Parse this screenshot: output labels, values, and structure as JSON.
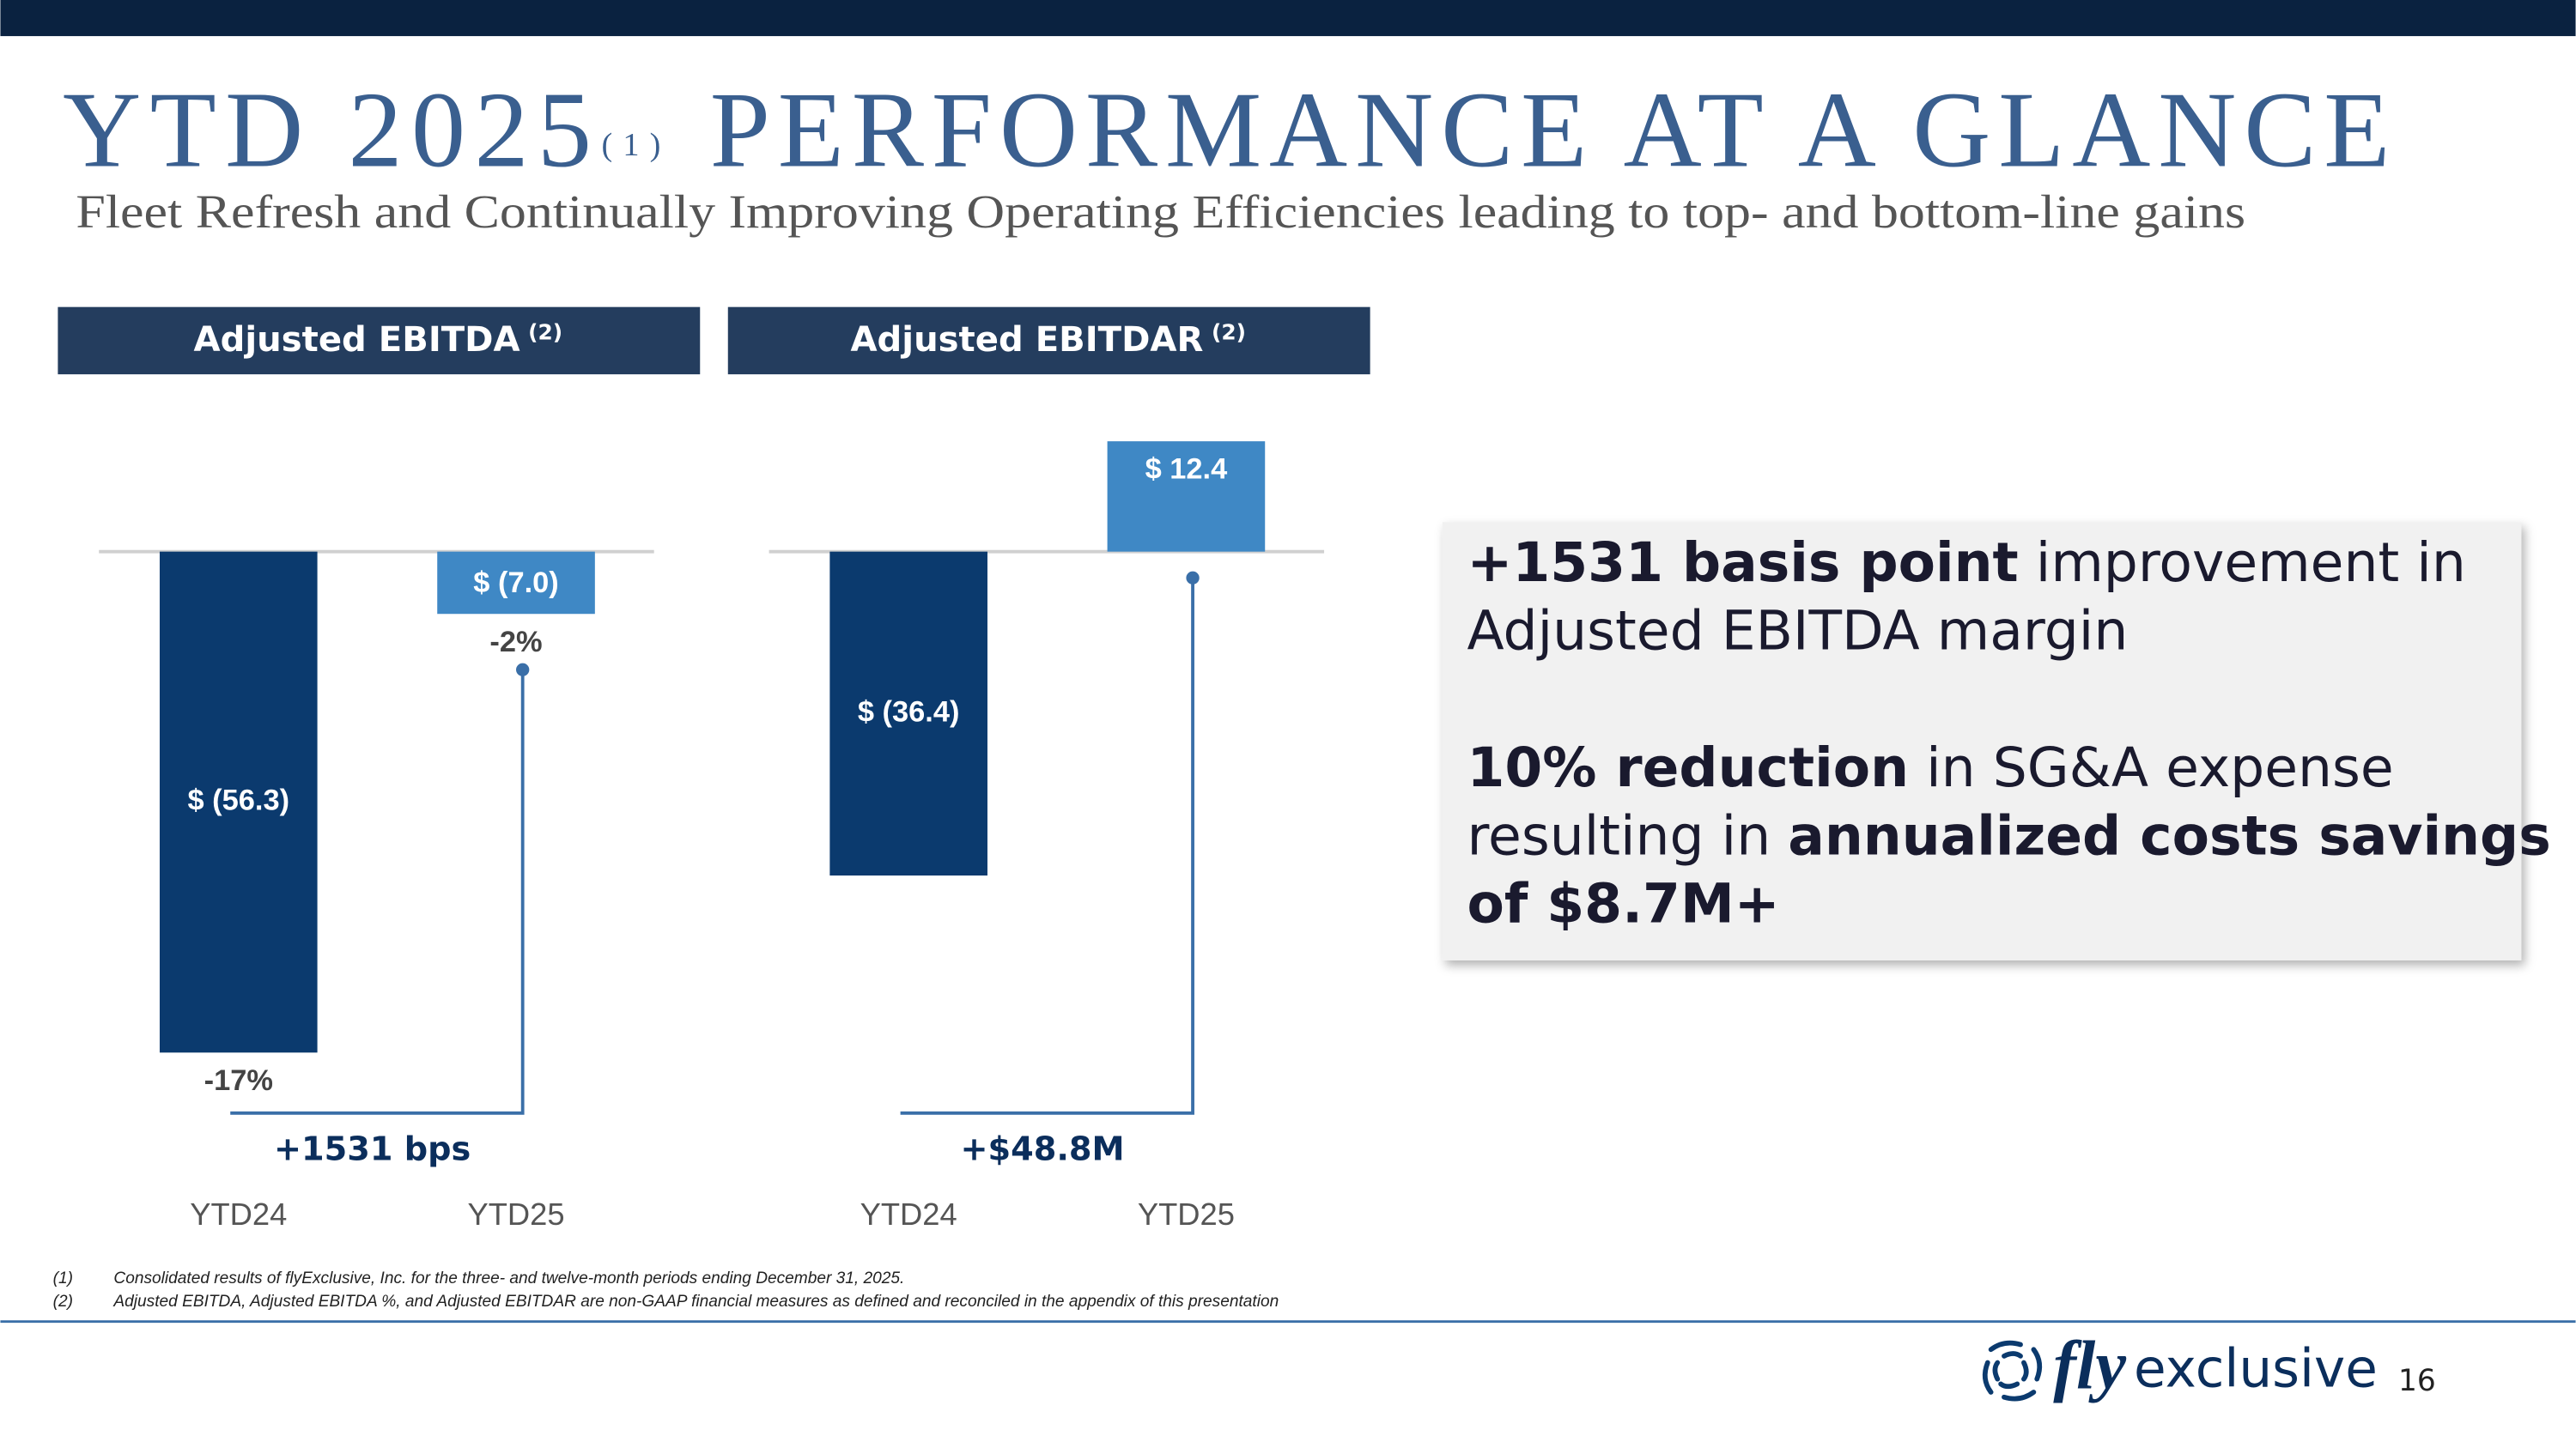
{
  "header": {
    "title_main": "YTD 2025",
    "title_note": "(1)",
    "title_rest": "PERFORMANCE AT A GLANCE",
    "subtitle": "Fleet Refresh and Continually Improving Operating Efficiencies leading to top- and bottom-line gains"
  },
  "chart_data": [
    {
      "type": "bar",
      "title": "Adjusted EBITDA",
      "title_note": "(2)",
      "categories": [
        "YTD24",
        "YTD25"
      ],
      "values": [
        -56.3,
        -7.0
      ],
      "value_labels": [
        "$ (56.3)",
        "$ (7.0)"
      ],
      "colors": [
        "#0b3a6e",
        "#3f88c5"
      ],
      "margin_labels": [
        "-17%",
        "-2%"
      ],
      "change_label": "+1531 bps"
    },
    {
      "type": "bar",
      "title": "Adjusted EBITDAR",
      "title_note": "(2)",
      "categories": [
        "YTD24",
        "YTD25"
      ],
      "values": [
        -36.4,
        12.4
      ],
      "value_labels": [
        "$ (36.4)",
        "$ 12.4"
      ],
      "colors": [
        "#0b3a6e",
        "#3f88c5"
      ],
      "change_label": "+$48.8M"
    }
  ],
  "callout": [
    [
      [
        {
          "text": "+1531 basis point",
          "bold": true
        },
        {
          "text": " improvement in",
          "bold": false
        }
      ],
      [
        {
          "text": "Adjusted EBITDA margin",
          "bold": false
        }
      ]
    ],
    [
      [
        {
          "text": "10% reduction",
          "bold": true
        },
        {
          "text": " in SG&A expense",
          "bold": false
        }
      ],
      [
        {
          "text": "resulting in ",
          "bold": false
        },
        {
          "text": "annualized costs savings",
          "bold": true
        }
      ],
      [
        {
          "text": "of $8.7M+",
          "bold": true
        }
      ]
    ]
  ],
  "footnotes": [
    {
      "mark": "(1)",
      "text": "Consolidated results of flyExclusive, Inc. for the three- and twelve-month periods ending December 31, 2025."
    },
    {
      "mark": "(2)",
      "text": "Adjusted EBITDA, Adjusted EBITDA %, and Adjusted EBITDAR are non-GAAP financial measures as defined and reconciled in the appendix of this presentation"
    }
  ],
  "footer": {
    "logo_fly": "fly",
    "logo_rest": "exclusive",
    "page": "16"
  }
}
